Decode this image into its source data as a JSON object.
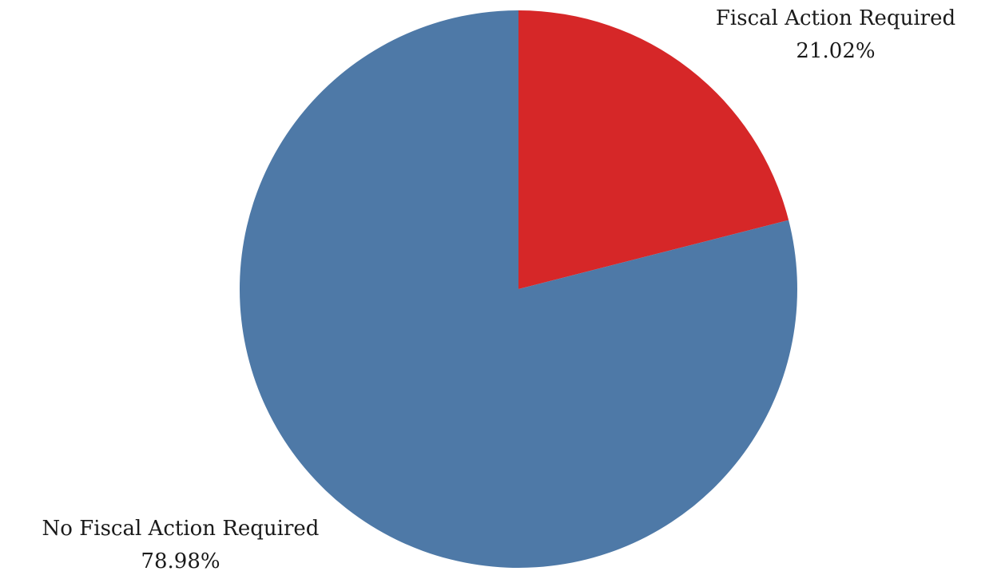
{
  "chart_data": {
    "type": "pie",
    "title": "",
    "start_angle_deg": 0,
    "direction": "clockwise",
    "slices": [
      {
        "label": "Fiscal Action Required",
        "value": 21.02,
        "value_label": "21.02%",
        "color": "#d62728"
      },
      {
        "label": "No Fiscal Action Required",
        "value": 78.98,
        "value_label": "78.98%",
        "color": "#4e79a7"
      }
    ]
  }
}
